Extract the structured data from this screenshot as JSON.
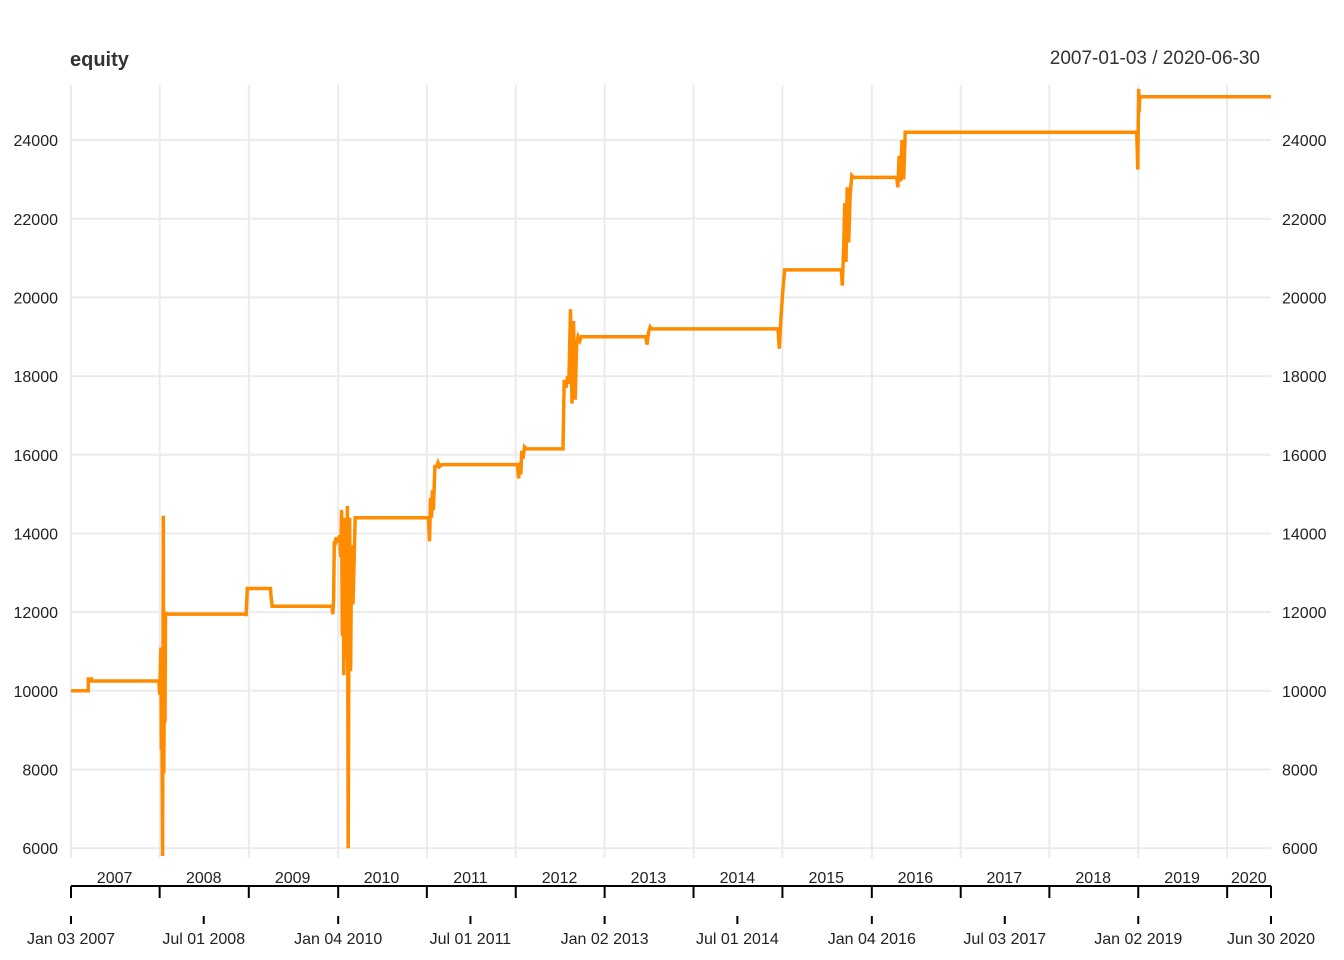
{
  "chart_data": {
    "type": "line",
    "title": "equity",
    "subtitle": "2007-01-03 / 2020-06-30",
    "x_range": [
      "2007-01-03",
      "2020-06-30"
    ],
    "ylim": [
      5750,
      25400
    ],
    "y_ticks": [
      6000,
      8000,
      10000,
      12000,
      14000,
      16000,
      18000,
      20000,
      22000,
      24000
    ],
    "y_tick_labels": [
      "6000",
      "8000",
      "10000",
      "12000",
      "14000",
      "16000",
      "18000",
      "20000",
      "22000",
      "24000"
    ],
    "year_labels": [
      {
        "label": "2007",
        "date": "2007-07-01"
      },
      {
        "label": "2008",
        "date": "2008-07-01"
      },
      {
        "label": "2009",
        "date": "2009-07-01"
      },
      {
        "label": "2010",
        "date": "2010-07-01"
      },
      {
        "label": "2011",
        "date": "2011-07-01"
      },
      {
        "label": "2012",
        "date": "2012-07-01"
      },
      {
        "label": "2013",
        "date": "2013-07-01"
      },
      {
        "label": "2014",
        "date": "2014-07-01"
      },
      {
        "label": "2015",
        "date": "2015-07-01"
      },
      {
        "label": "2016",
        "date": "2016-07-01"
      },
      {
        "label": "2017",
        "date": "2017-07-01"
      },
      {
        "label": "2018",
        "date": "2018-07-01"
      },
      {
        "label": "2019",
        "date": "2019-07-01"
      },
      {
        "label": "2020",
        "date": "2020-03-31"
      }
    ],
    "major_ticks": [
      "2007-01-03",
      "2008-01-02",
      "2009-01-02",
      "2010-01-04",
      "2011-01-03",
      "2012-01-03",
      "2013-01-02",
      "2014-01-02",
      "2015-01-02",
      "2016-01-04",
      "2017-01-03",
      "2018-01-02",
      "2019-01-02",
      "2020-01-02",
      "2020-06-30"
    ],
    "grid_v": [
      "2007-01-03",
      "2008-01-02",
      "2009-01-02",
      "2010-01-04",
      "2011-01-03",
      "2012-01-03",
      "2013-01-02",
      "2014-01-02",
      "2015-01-02",
      "2016-01-04",
      "2017-01-03",
      "2018-01-02",
      "2019-01-02",
      "2020-01-02"
    ],
    "bottom_labels": [
      {
        "label": "Jan 03 2007",
        "date": "2007-01-03"
      },
      {
        "label": "Jul 01 2008",
        "date": "2008-07-01"
      },
      {
        "label": "Jan 04 2010",
        "date": "2010-01-04"
      },
      {
        "label": "Jul 01 2011",
        "date": "2011-07-01"
      },
      {
        "label": "Jan 02 2013",
        "date": "2013-01-02"
      },
      {
        "label": "Jul 01 2014",
        "date": "2014-07-01"
      },
      {
        "label": "Jan 04 2016",
        "date": "2016-01-04"
      },
      {
        "label": "Jul 03 2017",
        "date": "2017-07-03"
      },
      {
        "label": "Jan 02 2019",
        "date": "2019-01-02"
      },
      {
        "label": "Jun 30 2020",
        "date": "2020-06-30"
      }
    ],
    "grid": true,
    "line_color": "#FF8C00",
    "series": [
      {
        "x": [
          "2007-01-03",
          "2007-03-15",
          "2007-03-15",
          "2007-03-28",
          "2007-03-28",
          "2007-12-30",
          "2008-01-02",
          "2008-01-07",
          "2008-01-09",
          "2008-01-11",
          "2008-01-14",
          "2008-01-17",
          "2008-01-19",
          "2008-01-22",
          "2008-01-24",
          "2008-01-26",
          "2008-01-29",
          "2008-02-01",
          "2008-02-04",
          "2008-02-06",
          "2008-02-08",
          "2008-12-20",
          "2008-12-22",
          "2008-12-24",
          "2008-12-27",
          "2009-04-01",
          "2009-04-03",
          "2009-04-08",
          "2009-04-12",
          "2009-12-10",
          "2009-12-13",
          "2009-12-16",
          "2009-12-19",
          "2009-12-22",
          "2009-12-26",
          "2009-12-30",
          "2010-01-02",
          "2010-01-06",
          "2010-01-10",
          "2010-01-14",
          "2010-01-18",
          "2010-01-21",
          "2010-01-24",
          "2010-01-27",
          "2010-01-31",
          "2010-02-03",
          "2010-02-05",
          "2010-02-08",
          "2010-02-11",
          "2010-02-14",
          "2010-02-17",
          "2010-02-20",
          "2010-02-24",
          "2010-02-28",
          "2010-03-06",
          "2010-03-15",
          "2010-03-22",
          "2011-01-10",
          "2011-01-14",
          "2011-01-18",
          "2011-01-22",
          "2011-01-26",
          "2011-01-30",
          "2011-02-05",
          "2011-02-12",
          "2011-02-18",
          "2011-02-24",
          "2011-03-05",
          "2012-01-10",
          "2012-01-15",
          "2012-01-19",
          "2012-01-24",
          "2012-01-28",
          "2012-02-02",
          "2012-02-08",
          "2012-02-16",
          "2012-07-15",
          "2012-07-20",
          "2012-07-27",
          "2012-08-03",
          "2012-08-08",
          "2012-08-15",
          "2012-08-21",
          "2012-08-27",
          "2012-09-03",
          "2012-09-09",
          "2012-09-15",
          "2012-09-22",
          "2012-09-28",
          "2012-10-05",
          "2012-10-12",
          "2012-10-20",
          "2013-06-20",
          "2013-06-25",
          "2013-07-01",
          "2013-07-08",
          "2013-07-15",
          "2014-12-15",
          "2014-12-20",
          "2014-12-27",
          "2015-01-04",
          "2015-01-11",
          "2015-01-20",
          "2015-02-01",
          "2015-02-15",
          "2015-03-01",
          "2015-09-01",
          "2015-09-05",
          "2015-09-10",
          "2015-09-15",
          "2015-09-20",
          "2015-09-25",
          "2015-10-01",
          "2015-10-07",
          "2015-10-14",
          "2015-10-21",
          "2015-10-31",
          "2015-11-15",
          "2016-04-15",
          "2016-04-20",
          "2016-04-25",
          "2016-05-01",
          "2016-05-07",
          "2016-05-14",
          "2016-05-20",
          "2016-05-28",
          "2016-06-05",
          "2016-06-15",
          "2018-12-24",
          "2018-12-27",
          "2018-12-31",
          "2019-01-02",
          "2019-01-04",
          "2019-01-06",
          "2019-01-08",
          "2019-01-10",
          "2019-01-12",
          "2020-06-30"
        ],
        "y": [
          10000,
          10000,
          10300,
          10300,
          10250,
          10250,
          9900,
          11100,
          8500,
          10300,
          5800,
          14450,
          7900,
          11000,
          9200,
          12000,
          11950,
          11950,
          11950,
          11950,
          11950,
          11950,
          11900,
          12200,
          12600,
          12600,
          12400,
          12150,
          12150,
          12150,
          11950,
          12300,
          13800,
          13700,
          13900,
          13800,
          13800,
          13800,
          13950,
          13400,
          14600,
          11400,
          13200,
          10400,
          14400,
          10800,
          13900,
          12100,
          14700,
          6000,
          11200,
          14400,
          10500,
          13700,
          12200,
          14400,
          14400,
          14400,
          13800,
          14900,
          14400,
          15100,
          14600,
          15700,
          15700,
          15800,
          15700,
          15750,
          15750,
          15400,
          15800,
          15500,
          16100,
          15900,
          16200,
          16150,
          16150,
          17900,
          17700,
          18000,
          17800,
          19700,
          17300,
          19400,
          17400,
          18800,
          19000,
          18900,
          19000,
          19000,
          19000,
          19000,
          19000,
          18800,
          19100,
          19250,
          19200,
          19200,
          18700,
          19500,
          20200,
          20700,
          20700,
          20700,
          20700,
          20700,
          20700,
          20300,
          21200,
          22400,
          20900,
          22800,
          21400,
          22600,
          23100,
          23050,
          23050,
          23050,
          23050,
          22800,
          23600,
          22950,
          24000,
          23000,
          24200,
          24200,
          24200,
          24200,
          24200,
          24150,
          23250,
          24500,
          25300,
          24700,
          25100,
          25100,
          25100,
          25100
        ]
      }
    ]
  }
}
